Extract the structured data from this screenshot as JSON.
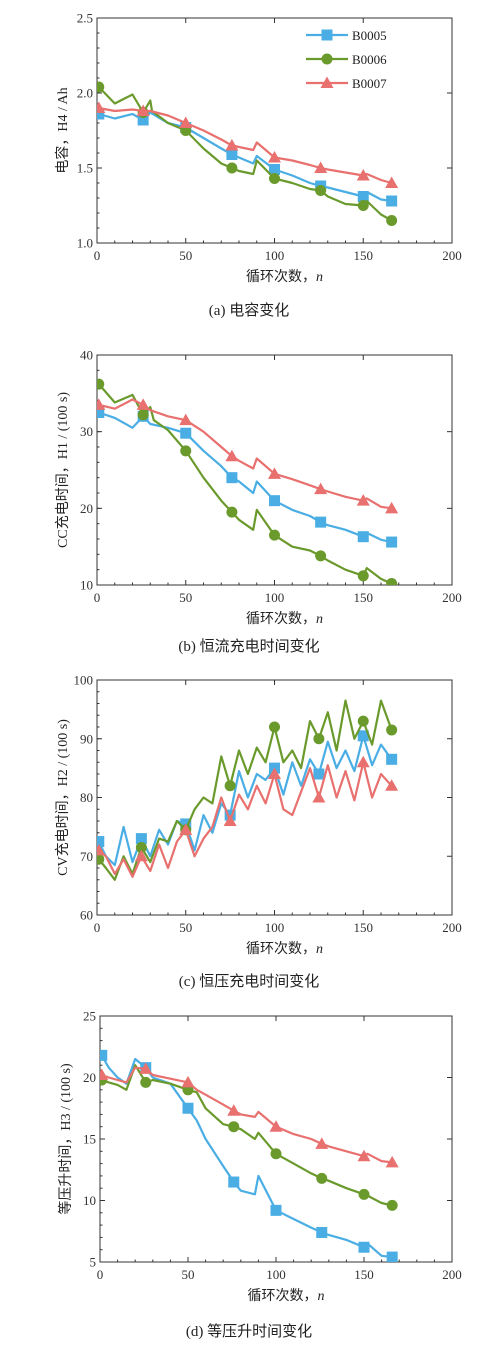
{
  "colors": {
    "B0005": "#4aaee4",
    "B0006": "#6a9a2c",
    "B0007": "#e8706e"
  },
  "legend": [
    "B0005",
    "B0006",
    "B0007"
  ],
  "chart_data": [
    {
      "type": "line",
      "caption": "(a)  电容变化",
      "xlabel": "循环次数，",
      "xlabel_var": "n",
      "ylabel": "电容，H4 / Ah",
      "xlim": [
        0,
        200
      ],
      "ylim": [
        1.0,
        2.5
      ],
      "xticks": [
        "0",
        "50",
        "100",
        "150",
        "200"
      ],
      "yticks": [
        "1.0",
        "1.5",
        "2.0",
        "2.5"
      ],
      "legend_position": "top-right",
      "series": [
        {
          "name": "B0005",
          "marker": "square",
          "x": [
            1,
            10,
            20,
            26,
            30,
            40,
            50,
            60,
            70,
            76,
            80,
            88,
            90,
            100,
            110,
            120,
            126,
            130,
            140,
            150,
            152,
            160,
            166
          ],
          "y": [
            1.86,
            1.83,
            1.86,
            1.82,
            1.87,
            1.8,
            1.77,
            1.7,
            1.63,
            1.59,
            1.57,
            1.53,
            1.58,
            1.49,
            1.45,
            1.4,
            1.38,
            1.37,
            1.34,
            1.31,
            1.34,
            1.29,
            1.28
          ]
        },
        {
          "name": "B0006",
          "marker": "circle",
          "x": [
            1,
            10,
            20,
            26,
            30,
            31,
            40,
            50,
            60,
            70,
            76,
            80,
            88,
            90,
            100,
            110,
            120,
            126,
            130,
            140,
            150,
            152,
            160,
            166
          ],
          "y": [
            2.04,
            1.93,
            1.99,
            1.87,
            1.95,
            1.88,
            1.8,
            1.75,
            1.63,
            1.53,
            1.5,
            1.48,
            1.46,
            1.55,
            1.43,
            1.4,
            1.36,
            1.35,
            1.31,
            1.26,
            1.25,
            1.28,
            1.19,
            1.15
          ]
        },
        {
          "name": "B0007",
          "marker": "triangle",
          "x": [
            1,
            10,
            20,
            26,
            30,
            40,
            50,
            60,
            70,
            76,
            80,
            88,
            90,
            100,
            110,
            120,
            126,
            130,
            140,
            150,
            152,
            160,
            166
          ],
          "y": [
            1.9,
            1.88,
            1.89,
            1.88,
            1.88,
            1.85,
            1.8,
            1.75,
            1.69,
            1.65,
            1.64,
            1.62,
            1.67,
            1.57,
            1.55,
            1.52,
            1.5,
            1.49,
            1.47,
            1.45,
            1.46,
            1.42,
            1.4
          ]
        }
      ]
    },
    {
      "type": "line",
      "caption": "(b)  恒流充电时间变化",
      "xlabel": "循环次数，",
      "xlabel_var": "n",
      "ylabel": "CC充电时间，H1 / (100 s)",
      "xlim": [
        0,
        200
      ],
      "ylim": [
        10,
        40
      ],
      "xticks": [
        "0",
        "50",
        "100",
        "150",
        "200"
      ],
      "yticks": [
        "10",
        "20",
        "30",
        "40"
      ],
      "series": [
        {
          "name": "B0005",
          "marker": "square",
          "x": [
            1,
            10,
            20,
            26,
            30,
            40,
            50,
            60,
            70,
            76,
            80,
            88,
            90,
            100,
            110,
            120,
            126,
            130,
            140,
            150,
            152,
            160,
            166
          ],
          "y": [
            32.5,
            31.8,
            30.5,
            32.0,
            31.0,
            30.5,
            29.8,
            27.5,
            25.5,
            24.0,
            23.5,
            22.0,
            23.5,
            21.0,
            19.8,
            19.0,
            18.2,
            17.8,
            17.2,
            16.3,
            16.8,
            15.9,
            15.6
          ]
        },
        {
          "name": "B0006",
          "marker": "circle",
          "x": [
            1,
            10,
            20,
            26,
            30,
            32,
            40,
            50,
            60,
            70,
            76,
            80,
            88,
            90,
            100,
            110,
            120,
            126,
            130,
            140,
            150,
            152,
            160,
            166
          ],
          "y": [
            36.2,
            33.8,
            34.8,
            32.2,
            33.2,
            31.5,
            30.2,
            27.5,
            24.0,
            21.0,
            19.5,
            18.5,
            17.2,
            19.8,
            16.5,
            15.0,
            14.5,
            13.8,
            13.2,
            12.0,
            11.2,
            12.2,
            10.8,
            10.2
          ]
        },
        {
          "name": "B0007",
          "marker": "triangle",
          "x": [
            1,
            10,
            20,
            26,
            30,
            40,
            50,
            60,
            70,
            76,
            80,
            88,
            90,
            100,
            110,
            120,
            126,
            130,
            140,
            150,
            152,
            160,
            166
          ],
          "y": [
            33.5,
            33.0,
            34.2,
            33.5,
            32.8,
            32.0,
            31.5,
            30.0,
            28.0,
            26.8,
            26.2,
            25.2,
            26.5,
            24.5,
            23.8,
            23.0,
            22.5,
            22.2,
            21.5,
            21.0,
            21.3,
            20.2,
            20.0
          ]
        }
      ]
    },
    {
      "type": "line",
      "caption": "(c)  恒压充电时间变化",
      "xlabel": "循环次数，",
      "xlabel_var": "n",
      "ylabel": "CV充电时间，H2 / (100 s)",
      "xlim": [
        0,
        200
      ],
      "ylim": [
        60,
        100
      ],
      "xticks": [
        "0",
        "50",
        "100",
        "150",
        "200"
      ],
      "yticks": [
        "60",
        "70",
        "80",
        "90",
        "100"
      ],
      "series": [
        {
          "name": "B0005",
          "marker": "square",
          "x": [
            1,
            5,
            10,
            15,
            20,
            25,
            30,
            35,
            40,
            45,
            50,
            55,
            60,
            65,
            70,
            75,
            80,
            85,
            90,
            95,
            100,
            105,
            110,
            115,
            120,
            125,
            130,
            135,
            140,
            145,
            150,
            155,
            160,
            166
          ],
          "y": [
            72.5,
            70.0,
            68.5,
            75.0,
            69.0,
            73.0,
            70.0,
            74.5,
            72.0,
            76.0,
            75.5,
            71.0,
            77.0,
            74.0,
            79.0,
            77.0,
            84.5,
            80.0,
            84.0,
            83.0,
            85.0,
            80.5,
            86.0,
            82.0,
            86.5,
            84.0,
            89.5,
            85.0,
            88.0,
            84.5,
            90.5,
            85.5,
            89.0,
            86.5
          ]
        },
        {
          "name": "B0006",
          "marker": "circle",
          "x": [
            1,
            5,
            10,
            15,
            20,
            25,
            30,
            35,
            40,
            45,
            50,
            55,
            60,
            65,
            70,
            75,
            80,
            85,
            90,
            95,
            100,
            105,
            110,
            115,
            120,
            125,
            130,
            135,
            140,
            145,
            150,
            155,
            160,
            166
          ],
          "y": [
            69.5,
            68.0,
            66.0,
            70.0,
            67.0,
            71.5,
            69.0,
            73.0,
            72.5,
            76.0,
            74.5,
            78.0,
            80.0,
            79.0,
            87.0,
            82.0,
            88.0,
            84.0,
            88.5,
            86.0,
            92.0,
            86.0,
            88.0,
            85.0,
            93.0,
            90.0,
            94.5,
            88.0,
            96.5,
            90.0,
            93.0,
            89.0,
            96.5,
            91.5
          ]
        },
        {
          "name": "B0007",
          "marker": "triangle",
          "x": [
            1,
            5,
            10,
            15,
            20,
            25,
            30,
            35,
            40,
            45,
            50,
            55,
            60,
            65,
            70,
            75,
            80,
            85,
            90,
            95,
            100,
            105,
            110,
            115,
            120,
            125,
            130,
            135,
            140,
            145,
            150,
            155,
            160,
            166
          ],
          "y": [
            71.0,
            70.0,
            67.0,
            69.5,
            66.5,
            70.0,
            67.5,
            72.0,
            68.0,
            72.5,
            74.5,
            70.0,
            73.0,
            75.0,
            80.0,
            76.0,
            80.5,
            78.0,
            82.0,
            79.0,
            84.0,
            78.0,
            77.0,
            81.0,
            85.0,
            80.0,
            85.5,
            80.0,
            84.5,
            79.5,
            86.0,
            80.0,
            84.0,
            82.0
          ]
        }
      ]
    },
    {
      "type": "line",
      "caption": "(d)  等压升时间变化",
      "xlabel": "循环次数，",
      "xlabel_var": "n",
      "ylabel": "等压升时间，H3 / (100 s)",
      "xlim": [
        0,
        200
      ],
      "ylim": [
        5,
        25
      ],
      "xticks": [
        "0",
        "50",
        "100",
        "150",
        "200"
      ],
      "yticks": [
        "5",
        "10",
        "15",
        "20",
        "25"
      ],
      "series": [
        {
          "name": "B0005",
          "marker": "square",
          "x": [
            1,
            5,
            10,
            15,
            20,
            26,
            30,
            40,
            50,
            55,
            60,
            70,
            76,
            80,
            88,
            90,
            100,
            110,
            120,
            126,
            130,
            140,
            150,
            152,
            160,
            166
          ],
          "y": [
            21.8,
            20.8,
            20.0,
            19.5,
            21.5,
            20.8,
            20.0,
            19.5,
            17.5,
            16.5,
            15.0,
            12.8,
            11.5,
            10.8,
            10.5,
            12.0,
            9.2,
            8.5,
            7.8,
            7.4,
            7.2,
            6.8,
            6.2,
            6.5,
            5.5,
            5.4
          ]
        },
        {
          "name": "B0006",
          "marker": "circle",
          "x": [
            1,
            5,
            10,
            15,
            20,
            26,
            30,
            40,
            50,
            55,
            60,
            70,
            76,
            80,
            88,
            90,
            100,
            110,
            120,
            126,
            130,
            140,
            150,
            152,
            160,
            166
          ],
          "y": [
            19.8,
            19.6,
            19.4,
            19.0,
            21.0,
            19.6,
            19.8,
            19.5,
            19.0,
            18.8,
            17.5,
            16.2,
            16.0,
            15.8,
            15.0,
            15.5,
            13.8,
            13.0,
            12.2,
            11.8,
            11.6,
            11.0,
            10.5,
            10.4,
            9.8,
            9.6
          ]
        },
        {
          "name": "B0007",
          "marker": "triangle",
          "x": [
            1,
            5,
            10,
            15,
            20,
            26,
            30,
            40,
            50,
            55,
            60,
            70,
            76,
            80,
            88,
            90,
            100,
            110,
            120,
            126,
            130,
            140,
            150,
            152,
            160,
            166
          ],
          "y": [
            20.2,
            20.0,
            19.8,
            19.6,
            20.8,
            20.7,
            20.2,
            19.9,
            19.6,
            19.0,
            18.6,
            17.8,
            17.3,
            17.0,
            16.8,
            17.2,
            16.0,
            15.4,
            15.0,
            14.6,
            14.4,
            14.0,
            13.6,
            13.8,
            13.2,
            13.1
          ]
        }
      ]
    }
  ]
}
